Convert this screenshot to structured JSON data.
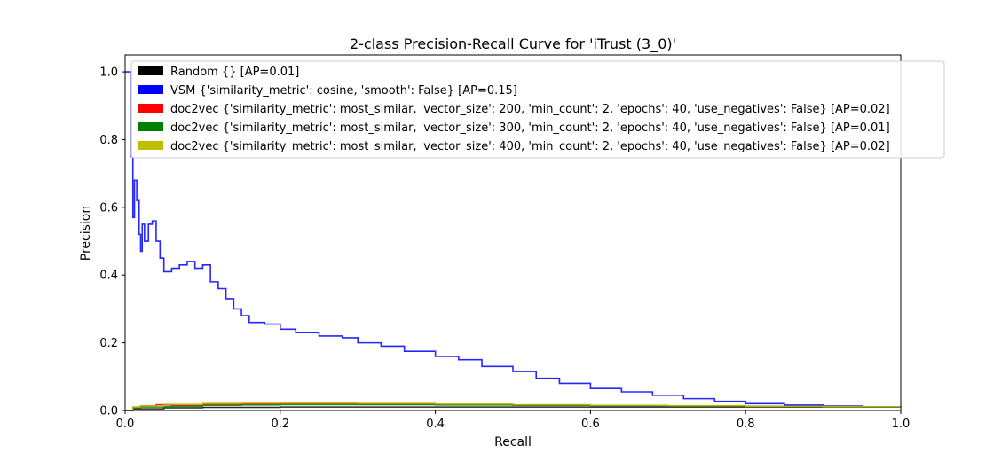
{
  "chart_data": {
    "type": "line",
    "title": "2-class Precision-Recall Curve for 'iTrust (3_0)'",
    "xlabel": "Recall",
    "ylabel": "Precision",
    "xlim": [
      0.0,
      1.0
    ],
    "ylim": [
      0.0,
      1.05
    ],
    "xticks": [
      "0.0",
      "0.2",
      "0.4",
      "0.6",
      "0.8",
      "1.0"
    ],
    "yticks": [
      "0.0",
      "0.2",
      "0.4",
      "0.6",
      "0.8",
      "1.0"
    ],
    "grid": false,
    "legend_position": "top-right",
    "series": [
      {
        "name": "Random {} [AP=0.01]",
        "color": "#000000",
        "x": [
          0.0,
          0.01,
          0.05,
          0.1,
          0.2,
          0.3,
          0.4,
          0.5,
          0.6,
          0.7,
          0.8,
          0.9,
          1.0
        ],
        "y": [
          0.0,
          0.005,
          0.008,
          0.009,
          0.01,
          0.01,
          0.01,
          0.01,
          0.01,
          0.01,
          0.01,
          0.01,
          0.01
        ]
      },
      {
        "name": "VSM {'similarity_metric': cosine, 'smooth': False} [AP=0.15]",
        "color": "#0000ff",
        "x": [
          0.0,
          0.005,
          0.008,
          0.01,
          0.012,
          0.015,
          0.018,
          0.02,
          0.022,
          0.025,
          0.03,
          0.035,
          0.04,
          0.045,
          0.05,
          0.06,
          0.07,
          0.08,
          0.09,
          0.1,
          0.11,
          0.12,
          0.13,
          0.14,
          0.15,
          0.16,
          0.18,
          0.2,
          0.22,
          0.25,
          0.28,
          0.3,
          0.33,
          0.36,
          0.4,
          0.43,
          0.46,
          0.5,
          0.53,
          0.56,
          0.6,
          0.64,
          0.68,
          0.72,
          0.76,
          0.8,
          0.85,
          0.9,
          0.95,
          1.0
        ],
        "y": [
          1.0,
          1.0,
          0.75,
          0.57,
          0.68,
          0.62,
          0.52,
          0.47,
          0.55,
          0.5,
          0.55,
          0.56,
          0.5,
          0.45,
          0.41,
          0.42,
          0.43,
          0.44,
          0.42,
          0.43,
          0.38,
          0.36,
          0.33,
          0.3,
          0.28,
          0.26,
          0.255,
          0.24,
          0.23,
          0.22,
          0.215,
          0.2,
          0.19,
          0.175,
          0.16,
          0.15,
          0.13,
          0.115,
          0.095,
          0.08,
          0.065,
          0.055,
          0.045,
          0.035,
          0.027,
          0.02,
          0.016,
          0.013,
          0.011,
          0.01
        ]
      },
      {
        "name": "doc2vec {'similarity_metric': most_similar, 'vector_size': 200, 'min_count': 2, 'epochs': 40, 'use_negatives': False} [AP=0.02]",
        "color": "#ff0000",
        "x": [
          0.0,
          0.01,
          0.02,
          0.04,
          0.06,
          0.1,
          0.15,
          0.2,
          0.3,
          0.4,
          0.5,
          0.6,
          0.7,
          0.8,
          0.9,
          1.0
        ],
        "y": [
          0.0,
          0.01,
          0.013,
          0.017,
          0.015,
          0.018,
          0.019,
          0.02,
          0.019,
          0.018,
          0.016,
          0.015,
          0.013,
          0.012,
          0.011,
          0.01
        ]
      },
      {
        "name": "doc2vec {'similarity_metric': most_similar, 'vector_size': 300, 'min_count': 2, 'epochs': 40, 'use_negatives': False} [AP=0.01]",
        "color": "#008000",
        "x": [
          0.0,
          0.01,
          0.02,
          0.05,
          0.1,
          0.15,
          0.2,
          0.3,
          0.4,
          0.5,
          0.6,
          0.7,
          0.8,
          0.9,
          1.0
        ],
        "y": [
          0.0,
          0.008,
          0.01,
          0.012,
          0.015,
          0.016,
          0.017,
          0.017,
          0.016,
          0.015,
          0.014,
          0.013,
          0.012,
          0.011,
          0.01
        ]
      },
      {
        "name": "doc2vec {'similarity_metric': most_similar, 'vector_size': 400, 'min_count': 2, 'epochs': 40, 'use_negatives': False} [AP=0.02]",
        "color": "#bfbf00",
        "x": [
          0.0,
          0.01,
          0.02,
          0.05,
          0.1,
          0.15,
          0.2,
          0.25,
          0.3,
          0.4,
          0.5,
          0.6,
          0.7,
          0.8,
          0.9,
          1.0
        ],
        "y": [
          0.0,
          0.01,
          0.013,
          0.018,
          0.021,
          0.022,
          0.022,
          0.022,
          0.021,
          0.019,
          0.017,
          0.015,
          0.014,
          0.012,
          0.011,
          0.01
        ]
      }
    ]
  }
}
